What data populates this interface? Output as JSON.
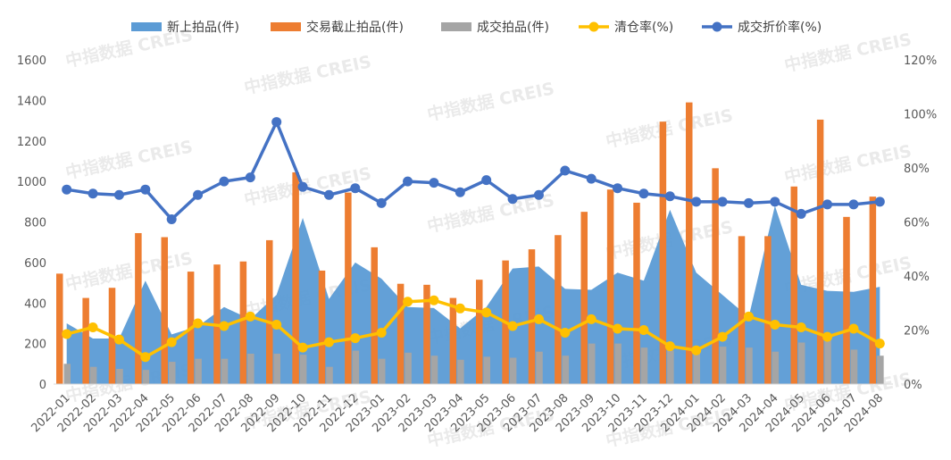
{
  "chart_data": {
    "type": "bar",
    "categories": [
      "2022-01",
      "2022-02",
      "2022-03",
      "2022-04",
      "2022-05",
      "2022-06",
      "2022-07",
      "2022-08",
      "2022-09",
      "2022-10",
      "2022-11",
      "2022-12",
      "2023-01",
      "2023-02",
      "2023-03",
      "2023-04",
      "2023-05",
      "2023-06",
      "2023-07",
      "2023-08",
      "2023-09",
      "2023-10",
      "2023-11",
      "2023-12",
      "2024-01",
      "2024-02",
      "2024-03",
      "2024-04",
      "2024-05",
      "2024-06",
      "2024-07",
      "2024-08"
    ],
    "series": [
      {
        "name": "新上拍品(件)",
        "kind": "area",
        "axis": "left",
        "color": "#5b9bd5",
        "values": [
          300,
          225,
          225,
          510,
          245,
          285,
          380,
          320,
          440,
          820,
          420,
          600,
          520,
          380,
          375,
          275,
          380,
          570,
          580,
          470,
          465,
          550,
          510,
          860,
          550,
          440,
          330,
          880,
          490,
          460,
          455,
          480
        ]
      },
      {
        "name": "交易截止拍品(件)",
        "kind": "bar",
        "axis": "left",
        "color": "#ed7d31",
        "values": [
          545,
          425,
          475,
          745,
          725,
          555,
          590,
          605,
          710,
          1045,
          560,
          945,
          675,
          495,
          490,
          425,
          515,
          610,
          665,
          735,
          850,
          960,
          895,
          1295,
          1390,
          1065,
          730,
          730,
          975,
          1305,
          825,
          925
        ]
      },
      {
        "name": "成交拍品(件)",
        "kind": "bar",
        "axis": "left",
        "color": "#a5a5a5",
        "values": [
          100,
          85,
          75,
          70,
          110,
          125,
          125,
          150,
          150,
          145,
          85,
          165,
          125,
          155,
          140,
          120,
          135,
          130,
          160,
          140,
          200,
          200,
          180,
          165,
          155,
          185,
          180,
          160,
          205,
          215,
          170,
          140
        ]
      },
      {
        "name": "清仓率(%)",
        "kind": "line",
        "axis": "right",
        "color": "#ffc000",
        "values": [
          18.5,
          21,
          16.5,
          10,
          15.5,
          22.5,
          21.5,
          25,
          22,
          13.5,
          15.5,
          17,
          19,
          30.5,
          31,
          28,
          26.5,
          21.5,
          24,
          19,
          24,
          20.5,
          20,
          14,
          12.5,
          17.5,
          25,
          22,
          21,
          17.5,
          20.5,
          15
        ]
      },
      {
        "name": "成交折价率(%)",
        "kind": "line",
        "axis": "right",
        "color": "#4472c4",
        "values": [
          72,
          70.5,
          70,
          72,
          61,
          70,
          75,
          76.5,
          97,
          73,
          70,
          72.5,
          67,
          75,
          74.5,
          71,
          75.5,
          68.5,
          70,
          79,
          76,
          72.5,
          70.5,
          69.5,
          67.5,
          67.5,
          67,
          67.5,
          63,
          66.5,
          66.5,
          67.5
        ]
      }
    ],
    "y_left": {
      "min": 0,
      "max": 1600,
      "ticks": [
        "0",
        "200",
        "400",
        "600",
        "800",
        "1000",
        "1200",
        "1400",
        "1600"
      ]
    },
    "y_right": {
      "min": 0,
      "max": 120,
      "ticks": [
        "0%",
        "20%",
        "40%",
        "60%",
        "80%",
        "100%",
        "120%"
      ]
    },
    "legend_position": "top",
    "grid": false,
    "watermark": "中指数据 CREIS"
  }
}
